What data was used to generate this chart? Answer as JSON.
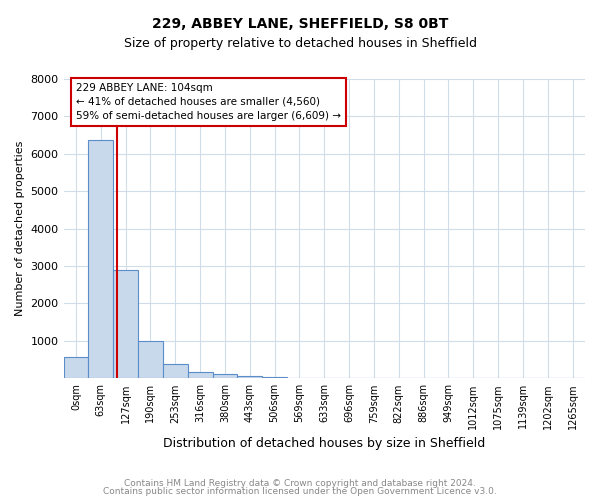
{
  "title1": "229, ABBEY LANE, SHEFFIELD, S8 0BT",
  "title2": "Size of property relative to detached houses in Sheffield",
  "xlabel": "Distribution of detached houses by size in Sheffield",
  "ylabel": "Number of detached properties",
  "categories": [
    "0sqm",
    "63sqm",
    "127sqm",
    "190sqm",
    "253sqm",
    "316sqm",
    "380sqm",
    "443sqm",
    "506sqm",
    "569sqm",
    "633sqm",
    "696sqm",
    "759sqm",
    "822sqm",
    "886sqm",
    "949sqm",
    "1012sqm",
    "1075sqm",
    "1139sqm",
    "1202sqm",
    "1265sqm"
  ],
  "values": [
    580,
    6370,
    2900,
    1000,
    380,
    165,
    110,
    65,
    45,
    0,
    0,
    0,
    0,
    0,
    0,
    0,
    0,
    0,
    0,
    0,
    0
  ],
  "bar_color": "#c9d9ec",
  "bar_edge_color": "#5b8dc8",
  "vline_x": 1.65,
  "vline_color": "#cc0000",
  "annotation_title": "229 ABBEY LANE: 104sqm",
  "annotation_line1": "← 41% of detached houses are smaller (4,560)",
  "annotation_line2": "59% of semi-detached houses are larger (6,609) →",
  "annotation_box_color": "#cc0000",
  "ylim": [
    0,
    8000
  ],
  "yticks": [
    0,
    1000,
    2000,
    3000,
    4000,
    5000,
    6000,
    7000,
    8000
  ],
  "footer1": "Contains HM Land Registry data © Crown copyright and database right 2024.",
  "footer2": "Contains public sector information licensed under the Open Government Licence v3.0.",
  "bg_color": "#ffffff",
  "grid_color": "#d0dce8"
}
